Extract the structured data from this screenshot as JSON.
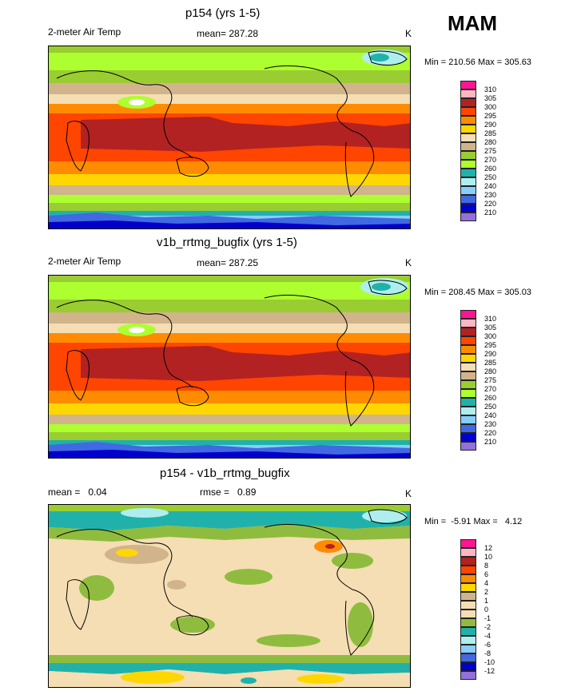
{
  "season": "MAM",
  "panels": [
    {
      "title": "p154 (yrs 1-5)",
      "left_label": "2-meter Air Temp",
      "center_label": "mean= 287.28",
      "right_label": "K",
      "minmax": "Min = 210.56 Max = 305.63",
      "legend": [
        "310",
        "305",
        "300",
        "295",
        "290",
        "285",
        "280",
        "275",
        "270",
        "260",
        "250",
        "240",
        "230",
        "220",
        "210"
      ],
      "colors": [
        "#ff1493",
        "#ffb6c1",
        "#b22222",
        "#ff4500",
        "#ff8c00",
        "#ffd700",
        "#f5deb3",
        "#d2b48c",
        "#9acd32",
        "#adff2f",
        "#20b2aa",
        "#afeeee",
        "#87cefa",
        "#4169e1",
        "#0000cd",
        "#9370db"
      ]
    },
    {
      "title": "v1b_rrtmg_bugfix (yrs 1-5)",
      "left_label": "2-meter Air Temp",
      "center_label": "mean= 287.25",
      "right_label": "K",
      "minmax": "Min = 208.45 Max = 305.03",
      "legend": [
        "310",
        "305",
        "300",
        "295",
        "290",
        "285",
        "280",
        "275",
        "270",
        "260",
        "250",
        "240",
        "230",
        "220",
        "210"
      ],
      "colors": [
        "#ff1493",
        "#ffb6c1",
        "#b22222",
        "#ff4500",
        "#ff8c00",
        "#ffd700",
        "#f5deb3",
        "#d2b48c",
        "#9acd32",
        "#adff2f",
        "#20b2aa",
        "#afeeee",
        "#87cefa",
        "#4169e1",
        "#0000cd",
        "#9370db"
      ]
    },
    {
      "title": "p154 - v1b_rrtmg_bugfix",
      "left_label": "mean =   0.04",
      "center_label": "rmse =   0.89",
      "right_label": "K",
      "minmax": "Min =  -5.91 Max =   4.12",
      "legend": [
        "12",
        "10",
        "8",
        "6",
        "4",
        "2",
        "1",
        "0",
        "-1",
        "-2",
        "-4",
        "-6",
        "-8",
        "-10",
        "-12"
      ],
      "colors": [
        "#ff1493",
        "#ffb6c1",
        "#b22222",
        "#ff4500",
        "#ff8c00",
        "#ffd700",
        "#d2b48c",
        "#f5deb3",
        "#f5deb3",
        "#8fbc3f",
        "#20b2aa",
        "#afeeee",
        "#87cefa",
        "#4169e1",
        "#0000cd",
        "#9370db"
      ]
    }
  ]
}
